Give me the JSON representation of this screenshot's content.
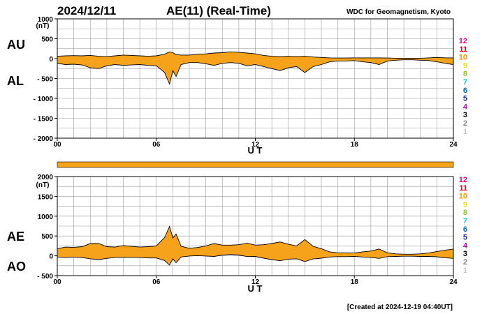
{
  "header": {
    "date": "2024/12/11",
    "title": "AE(11) (Real-Time)",
    "organization": "WDC for Geomagnetism, Kyoto"
  },
  "footer": {
    "created": "[Created at 2024-12-19 04:40UT]"
  },
  "colors": {
    "fill": "#f7a21b",
    "line": "#000000",
    "grid": "#9a9a9a"
  },
  "legend": [
    {
      "label": "12",
      "color": "#e5007f"
    },
    {
      "label": "11",
      "color": "#e60012"
    },
    {
      "label": "10",
      "color": "#f39800"
    },
    {
      "label": "9",
      "color": "#e4e400"
    },
    {
      "label": "8",
      "color": "#8fc31f"
    },
    {
      "label": "7",
      "color": "#00d0d0"
    },
    {
      "label": "6",
      "color": "#0068b7"
    },
    {
      "label": "5",
      "color": "#1d2088"
    },
    {
      "label": "4",
      "color": "#c000c0"
    },
    {
      "label": "3",
      "color": "#000000"
    },
    {
      "label": "2",
      "color": "#808080"
    },
    {
      "label": "1",
      "color": "#c8c8c8"
    }
  ],
  "chart_data": [
    {
      "type": "area",
      "panel": "AU/AL",
      "series_labels": [
        "AU",
        "AL"
      ],
      "xlabel": "U T",
      "ylabel_unit": "(nT)",
      "xlim": [
        0,
        24
      ],
      "ylim": [
        -2000,
        1000
      ],
      "xticks": [
        0,
        6,
        12,
        18,
        24
      ],
      "xtick_labels": [
        "00",
        "06",
        "12",
        "18",
        "24"
      ],
      "yticks": [
        1000,
        500,
        0,
        -500,
        -1000,
        -1500,
        -2000
      ],
      "ytick_labels": [
        "1000",
        "500",
        "0",
        "- 500",
        "- 1000",
        "- 1500",
        "- 2000"
      ],
      "grid": true,
      "x": [
        0,
        0.5,
        1,
        1.5,
        2,
        2.5,
        3,
        3.5,
        4,
        4.5,
        5,
        5.5,
        6,
        6.5,
        6.8,
        7,
        7.2,
        7.5,
        8,
        8.5,
        9,
        9.5,
        10,
        10.5,
        11,
        11.5,
        12,
        12.5,
        13,
        13.5,
        14,
        14.5,
        15,
        15.5,
        16,
        16.5,
        17,
        17.5,
        18,
        18.5,
        19,
        19.5,
        20,
        20.5,
        21,
        21.5,
        22,
        22.5,
        23,
        23.5,
        24
      ],
      "series": [
        {
          "name": "AU",
          "values": [
            60,
            70,
            75,
            70,
            80,
            60,
            50,
            70,
            90,
            80,
            70,
            60,
            70,
            110,
            170,
            150,
            100,
            90,
            90,
            110,
            120,
            140,
            150,
            170,
            160,
            140,
            120,
            80,
            60,
            50,
            60,
            50,
            60,
            40,
            30,
            20,
            15,
            15,
            20,
            20,
            20,
            20,
            15,
            10,
            10,
            10,
            10,
            20,
            30,
            20,
            20
          ]
        },
        {
          "name": "AL",
          "values": [
            -120,
            -150,
            -140,
            -160,
            -230,
            -250,
            -180,
            -150,
            -170,
            -160,
            -150,
            -170,
            -180,
            -350,
            -640,
            -300,
            -450,
            -150,
            -100,
            -100,
            -130,
            -170,
            -120,
            -100,
            -120,
            -180,
            -150,
            -200,
            -250,
            -300,
            -230,
            -200,
            -350,
            -200,
            -150,
            -80,
            -60,
            -60,
            -50,
            -80,
            -100,
            -150,
            -60,
            -40,
            -30,
            -30,
            -40,
            -50,
            -80,
            -120,
            -150
          ]
        }
      ]
    },
    {
      "type": "area",
      "panel": "AE/AO",
      "series_labels": [
        "AE",
        "AO"
      ],
      "xlabel": "U T",
      "ylabel_unit": "(nT)",
      "xlim": [
        0,
        24
      ],
      "ylim": [
        -500,
        2000
      ],
      "xticks": [
        0,
        6,
        12,
        18,
        24
      ],
      "xtick_labels": [
        "00",
        "06",
        "12",
        "18",
        "24"
      ],
      "yticks": [
        2000,
        1500,
        1000,
        500,
        0,
        -500
      ],
      "ytick_labels": [
        "2000",
        "1500",
        "1000",
        "500",
        "0",
        "- 500"
      ],
      "grid": true,
      "x": [
        0,
        0.5,
        1,
        1.5,
        2,
        2.5,
        3,
        3.5,
        4,
        4.5,
        5,
        5.5,
        6,
        6.5,
        6.8,
        7,
        7.2,
        7.5,
        8,
        8.5,
        9,
        9.5,
        10,
        10.5,
        11,
        11.5,
        12,
        12.5,
        13,
        13.5,
        14,
        14.5,
        15,
        15.5,
        16,
        16.5,
        17,
        17.5,
        18,
        18.5,
        19,
        19.5,
        20,
        20.5,
        21,
        21.5,
        22,
        22.5,
        23,
        23.5,
        24
      ],
      "series": [
        {
          "name": "AE",
          "values": [
            180,
            220,
            215,
            230,
            310,
            310,
            230,
            220,
            260,
            240,
            220,
            230,
            250,
            460,
            740,
            450,
            550,
            240,
            190,
            210,
            250,
            310,
            270,
            270,
            280,
            320,
            270,
            280,
            310,
            350,
            290,
            250,
            410,
            240,
            180,
            100,
            75,
            75,
            70,
            100,
            120,
            170,
            75,
            50,
            40,
            40,
            50,
            70,
            110,
            140,
            170
          ]
        },
        {
          "name": "AO",
          "values": [
            -30,
            -40,
            -32,
            -45,
            -75,
            -95,
            -65,
            -40,
            -40,
            -40,
            -40,
            -55,
            -55,
            -120,
            -235,
            -75,
            -175,
            -30,
            -5,
            5,
            -5,
            -15,
            15,
            35,
            20,
            -20,
            -15,
            -60,
            -95,
            -125,
            -85,
            -75,
            -145,
            -80,
            -60,
            -30,
            -22,
            -22,
            -15,
            -30,
            -40,
            -65,
            -22,
            -15,
            -10,
            -10,
            -15,
            -15,
            -25,
            -50,
            -65
          ]
        }
      ]
    }
  ]
}
